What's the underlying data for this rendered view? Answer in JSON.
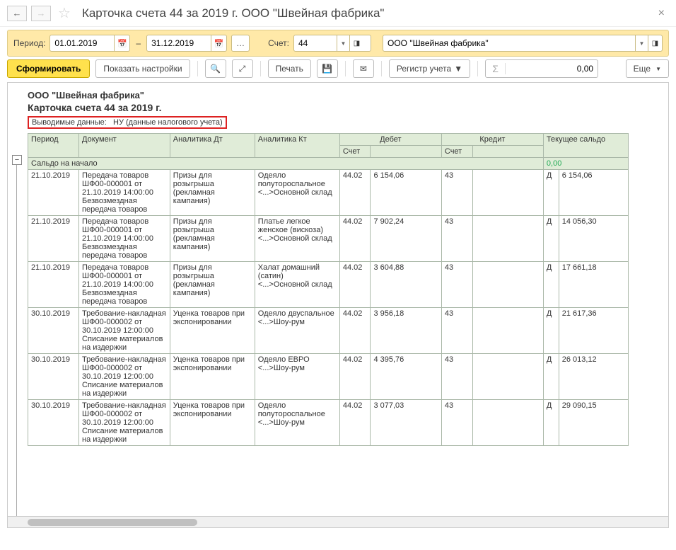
{
  "title": "Карточка счета 44 за 2019 г. ООО \"Швейная фабрика\"",
  "period": {
    "label": "Период:",
    "from": "01.01.2019",
    "to": "31.12.2019"
  },
  "account": {
    "label": "Счет:",
    "value": "44"
  },
  "org": {
    "value": "ООО \"Швейная фабрика\""
  },
  "buttons": {
    "form": "Сформировать",
    "show_settings": "Показать настройки",
    "print": "Печать",
    "register": "Регистр учета",
    "more": "Еще"
  },
  "sum_value": "0,00",
  "report": {
    "org_name": "ООО \"Швейная фабрика\"",
    "title": "Карточка счета 44 за 2019 г.",
    "output_label": "Выводимые данные:",
    "output_value": "НУ (данные налогового учета)"
  },
  "headers": {
    "period": "Период",
    "document": "Документ",
    "adt": "Аналитика Дт",
    "akt": "Аналитика Кт",
    "debit": "Дебет",
    "credit": "Кредит",
    "balance": "Текущее сальдо",
    "acct": "Счет"
  },
  "saldo_start": {
    "label": "Сальдо на начало",
    "value": "0,00"
  },
  "rows": [
    {
      "period": "21.10.2019",
      "doc": "Передача товаров ШФ00-000001 от 21.10.2019 14:00:00 Безвозмездная передача товаров",
      "adt": "Призы для розыгрыша (рекламная кампания)",
      "akt": "Одеяло полутороспальное <...>Основной склад",
      "d_acct": "44.02",
      "d_val": "6 154,06",
      "c_acct": "43",
      "c_val": "",
      "dc": "Д",
      "bal": "6 154,06"
    },
    {
      "period": "21.10.2019",
      "doc": "Передача товаров ШФ00-000001 от 21.10.2019 14:00:00 Безвозмездная передача товаров",
      "adt": "Призы для розыгрыша (рекламная кампания)",
      "akt": "Платье легкое женское (вискоза) <...>Основной склад",
      "d_acct": "44.02",
      "d_val": "7 902,24",
      "c_acct": "43",
      "c_val": "",
      "dc": "Д",
      "bal": "14 056,30"
    },
    {
      "period": "21.10.2019",
      "doc": "Передача товаров ШФ00-000001 от 21.10.2019 14:00:00 Безвозмездная передача товаров",
      "adt": "Призы для розыгрыша (рекламная кампания)",
      "akt": "Халат домашний (сатин) <...>Основной склад",
      "d_acct": "44.02",
      "d_val": "3 604,88",
      "c_acct": "43",
      "c_val": "",
      "dc": "Д",
      "bal": "17 661,18"
    },
    {
      "period": "30.10.2019",
      "doc": "Требование-накладная ШФ00-000002 от 30.10.2019 12:00:00 Списание материалов на издержки",
      "adt": "Уценка товаров при экспонировании",
      "akt": "Одеяло двуспальное <...>Шоу-рум",
      "d_acct": "44.02",
      "d_val": "3 956,18",
      "c_acct": "43",
      "c_val": "",
      "dc": "Д",
      "bal": "21 617,36"
    },
    {
      "period": "30.10.2019",
      "doc": "Требование-накладная ШФ00-000002 от 30.10.2019 12:00:00 Списание материалов на издержки",
      "adt": "Уценка товаров при экспонировании",
      "akt": "Одеяло ЕВРО <...>Шоу-рум",
      "d_acct": "44.02",
      "d_val": "4 395,76",
      "c_acct": "43",
      "c_val": "",
      "dc": "Д",
      "bal": "26 013,12"
    },
    {
      "period": "30.10.2019",
      "doc": "Требование-накладная ШФ00-000002 от 30.10.2019 12:00:00 Списание материалов на издержки",
      "adt": "Уценка товаров при экспонировании",
      "akt": "Одеяло полутороспальное <...>Шоу-рум",
      "d_acct": "44.02",
      "d_val": "3 077,03",
      "c_acct": "43",
      "c_val": "",
      "dc": "Д",
      "bal": "29 090,15"
    }
  ],
  "colors": {
    "toolbar_bg": "#ffe9a8",
    "yellow_btn": "#ffe14d",
    "header_bg": "#e0ecd8",
    "border": "#aab8a8",
    "highlight": "#d22"
  }
}
